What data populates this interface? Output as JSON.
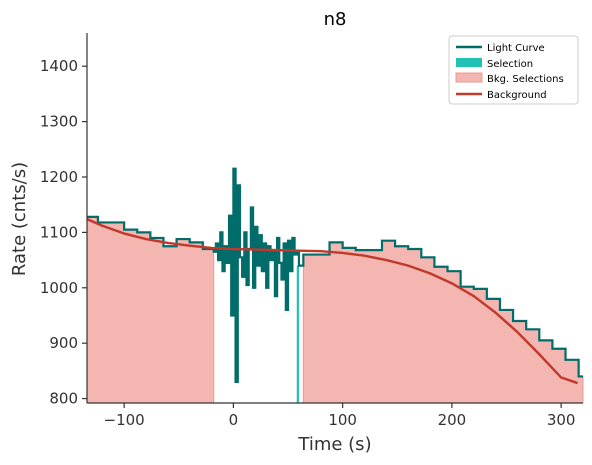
{
  "chart_data": {
    "type": "line",
    "title": "n8",
    "xlabel": "Time (s)",
    "ylabel": "Rate (cnts/s)",
    "xlim": [
      -134,
      320
    ],
    "ylim": [
      792,
      1460
    ],
    "x_ticks": [
      -100,
      0,
      100,
      200,
      300
    ],
    "x_tick_labels": [
      "−100",
      "0",
      "100",
      "200",
      "300"
    ],
    "y_ticks": [
      800,
      900,
      1000,
      1100,
      1200,
      1300,
      1400
    ],
    "y_tick_labels": [
      "800",
      "900",
      "1000",
      "1100",
      "1200",
      "1300",
      "1400"
    ],
    "legend_position": "top-right",
    "legend": [
      "Light Curve",
      "Selection",
      "Bkg. Selections",
      "Background"
    ],
    "colors": {
      "light_curve": "#006d6a",
      "selection": "#20c2b4",
      "bkg_selections": "#f4b6b0",
      "bkg_selections_edge": "#e99a92",
      "background": "#c0392b",
      "axes": "#333333"
    },
    "light_curve": {
      "x": [
        -134,
        -124,
        -112,
        -100,
        -88,
        -76,
        -64,
        -52,
        -40,
        -28,
        -18,
        -16,
        -14,
        -12,
        -10,
        -8,
        -6,
        -4,
        -2,
        0,
        2,
        4,
        6,
        8,
        10,
        12,
        14,
        16,
        18,
        20,
        22,
        24,
        26,
        28,
        30,
        32,
        34,
        36,
        38,
        40,
        42,
        44,
        46,
        48,
        50,
        52,
        54,
        56,
        58,
        60,
        64,
        76,
        88,
        100,
        112,
        124,
        136,
        148,
        160,
        172,
        184,
        196,
        208,
        220,
        232,
        244,
        256,
        268,
        280,
        292,
        304,
        316,
        320
      ],
      "y": [
        1128,
        1118,
        1118,
        1105,
        1100,
        1090,
        1075,
        1088,
        1082,
        1070,
        1065,
        1080,
        1050,
        1100,
        1030,
        1075,
        1045,
        1130,
        950,
        1215,
        830,
        1185,
        1055,
        1020,
        1100,
        1005,
        1070,
        1145,
        1000,
        1110,
        1040,
        1095,
        1030,
        1080,
        1000,
        1075,
        1050,
        1065,
        985,
        1090,
        1045,
        1015,
        1080,
        960,
        1085,
        1030,
        1090,
        1060,
        1065,
        1040,
        1060,
        1060,
        1082,
        1072,
        1068,
        1068,
        1085,
        1075,
        1070,
        1055,
        1038,
        1030,
        1002,
        998,
        980,
        960,
        940,
        925,
        905,
        890,
        870,
        840,
        840
      ]
    },
    "background": {
      "x": [
        -134,
        -120,
        -100,
        -80,
        -60,
        -40,
        -20,
        0,
        20,
        40,
        60,
        80,
        100,
        120,
        140,
        160,
        180,
        200,
        220,
        240,
        260,
        280,
        300,
        315
      ],
      "y": [
        1124,
        1112,
        1098,
        1088,
        1081,
        1076,
        1072,
        1070,
        1069,
        1068,
        1067,
        1066,
        1063,
        1058,
        1050,
        1040,
        1026,
        1008,
        985,
        955,
        920,
        880,
        838,
        828
      ]
    },
    "selection": {
      "x_start": 58,
      "x_end": 60
    },
    "bkg_selections": [
      [
        -134,
        -18
      ],
      [
        64,
        320
      ]
    ]
  }
}
